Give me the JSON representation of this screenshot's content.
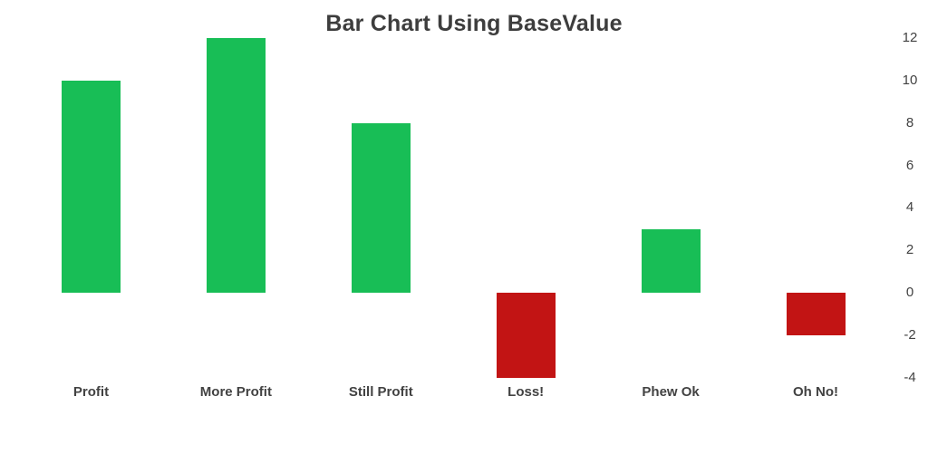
{
  "chart_data": {
    "type": "bar",
    "title": "Bar Chart Using BaseValue",
    "categories": [
      "Profit",
      "More Profit",
      "Still Profit",
      "Loss!",
      "Phew Ok",
      "Oh No!"
    ],
    "values": [
      10,
      12,
      8,
      -4,
      3,
      -2
    ],
    "base_value": 0,
    "ylim": [
      -4,
      12
    ],
    "y_ticks": [
      12,
      10,
      8,
      6,
      4,
      2,
      0,
      -2,
      -4
    ],
    "xlabel": "",
    "ylabel": "",
    "axis_position": "right",
    "grid": false,
    "legend": false,
    "colors": {
      "positive_bar": "#18BE56",
      "negative_bar": "#C21414",
      "axis_text": "#424242",
      "title_text": "#3D3D3D",
      "background": "#FFFFFF"
    }
  }
}
